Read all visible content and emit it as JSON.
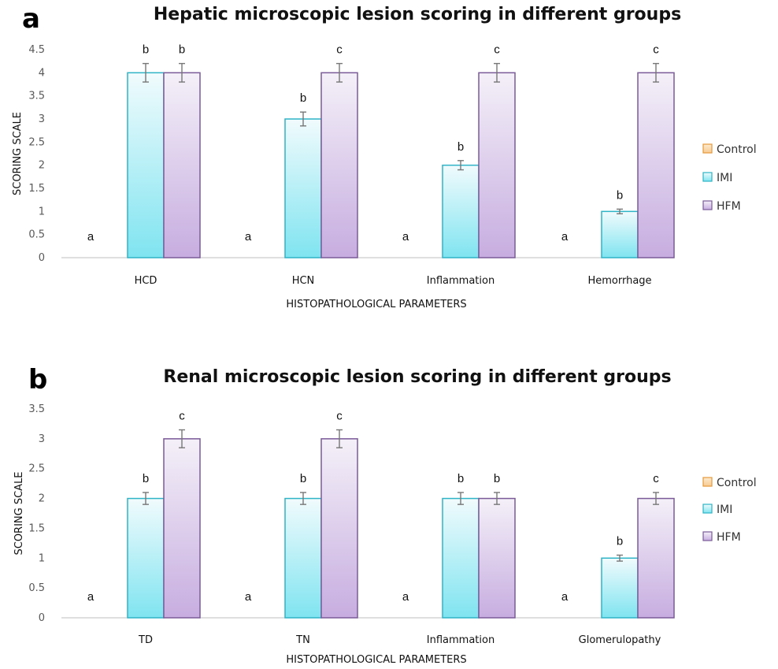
{
  "chart_data": [
    {
      "panel": "a",
      "type": "bar",
      "title": "Hepatic microscopic lesion scoring in different groups",
      "xlabel": "HISTOPATHOLOGICAL PARAMETERS",
      "ylabel": "SCORING SCALE",
      "ylim": [
        0,
        4.5
      ],
      "yticks": [
        "0",
        "0.5",
        "1",
        "1.5",
        "2",
        "2.5",
        "3",
        "3.5",
        "4",
        "4.5"
      ],
      "categories": [
        "HCD",
        "HCN",
        "Inflammation",
        "Hemorrhage"
      ],
      "series": [
        {
          "name": "Control",
          "values": [
            0,
            0,
            0,
            0
          ],
          "errors": [
            0,
            0,
            0,
            0
          ],
          "letters": [
            "a",
            "a",
            "a",
            "a"
          ]
        },
        {
          "name": "IMI",
          "values": [
            4,
            3,
            2,
            1
          ],
          "errors": [
            0.2,
            0.15,
            0.1,
            0.05
          ],
          "letters": [
            "b",
            "b",
            "b",
            "b"
          ]
        },
        {
          "name": "HFM",
          "values": [
            4,
            4,
            4,
            4
          ],
          "errors": [
            0.2,
            0.2,
            0.2,
            0.2
          ],
          "letters": [
            "b",
            "c",
            "c",
            "c"
          ]
        }
      ],
      "legend_position": "right",
      "grid": false
    },
    {
      "panel": "b",
      "type": "bar",
      "title": "Renal microscopic lesion scoring in different groups",
      "xlabel": "HISTOPATHOLOGICAL PARAMETERS",
      "ylabel": "SCORING SCALE",
      "ylim": [
        0,
        3.5
      ],
      "yticks": [
        "0",
        "0.5",
        "1",
        "1.5",
        "2",
        "2.5",
        "3",
        "3.5"
      ],
      "categories": [
        "TD",
        "TN",
        "Inflammation",
        "Glomerulopathy"
      ],
      "series": [
        {
          "name": "Control",
          "values": [
            0,
            0,
            0,
            0
          ],
          "errors": [
            0,
            0,
            0,
            0
          ],
          "letters": [
            "a",
            "a",
            "a",
            "a"
          ]
        },
        {
          "name": "IMI",
          "values": [
            2,
            2,
            2,
            1
          ],
          "errors": [
            0.1,
            0.1,
            0.1,
            0.05
          ],
          "letters": [
            "b",
            "b",
            "b",
            "b"
          ]
        },
        {
          "name": "HFM",
          "values": [
            3,
            3,
            2,
            2
          ],
          "errors": [
            0.15,
            0.15,
            0.1,
            0.1
          ],
          "letters": [
            "c",
            "c",
            "b",
            "c"
          ]
        }
      ],
      "legend_position": "right",
      "grid": false
    }
  ],
  "colors": {
    "control_fill": "#f7c992",
    "control_border": "#e59a3c",
    "imi_top": "#f1fbfd",
    "imi_bottom": "#7fe4f0",
    "imi_border": "#2fb3c6",
    "hfm_top": "#f4f0f8",
    "hfm_bottom": "#c7ade0",
    "hfm_border": "#7a5a98",
    "axis": "#bfbfbf",
    "errorbar": "#777777"
  }
}
